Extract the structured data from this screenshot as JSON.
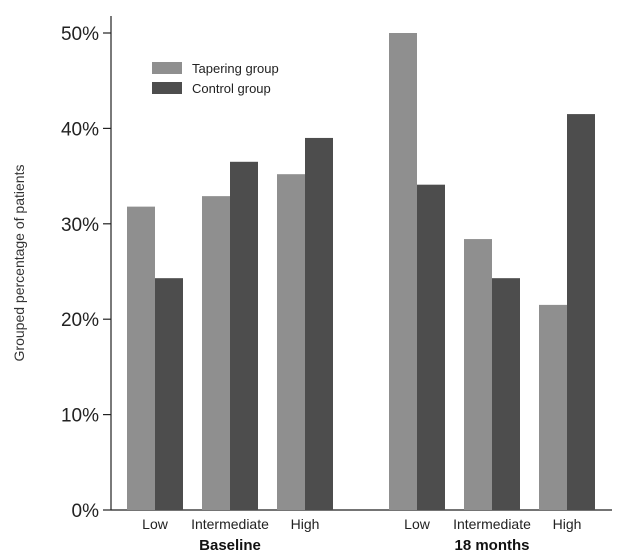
{
  "chart_data": {
    "type": "bar",
    "ylabel": "Grouped percentage of patients",
    "ylim": [
      0,
      50
    ],
    "y_ticks": [
      0,
      10,
      20,
      30,
      40,
      50
    ],
    "y_tick_labels": [
      "0%",
      "10%",
      "20%",
      "30%",
      "40%",
      "50%"
    ],
    "groups": [
      {
        "label": "Baseline",
        "categories": [
          "Low",
          "Intermediate",
          "High"
        ]
      },
      {
        "label": "18 months",
        "categories": [
          "Low",
          "Intermediate",
          "High"
        ]
      }
    ],
    "series": [
      {
        "name": "Tapering group",
        "color": "#8f8f8f",
        "values": [
          31.8,
          32.9,
          35.2,
          50.0,
          28.4,
          21.5
        ]
      },
      {
        "name": "Control group",
        "color": "#4d4d4d",
        "values": [
          24.3,
          36.5,
          39.0,
          34.1,
          24.3,
          41.5
        ]
      }
    ],
    "legend_position": "top-left",
    "grid": false
  }
}
